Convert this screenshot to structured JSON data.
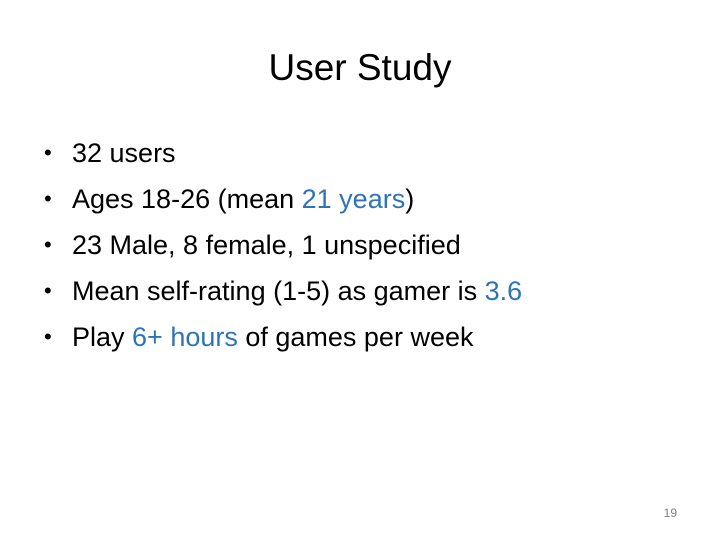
{
  "slide": {
    "title": "User Study",
    "bullet_char": "•",
    "bullets": [
      {
        "segments": [
          {
            "text": "32 users"
          }
        ]
      },
      {
        "segments": [
          {
            "text": "Ages 18-26 (mean "
          },
          {
            "text": "21 years",
            "highlight": true
          },
          {
            "text": ")"
          }
        ]
      },
      {
        "segments": [
          {
            "text": "23 Male, 8 female, 1 unspecified"
          }
        ]
      },
      {
        "segments": [
          {
            "text": "Mean self-rating (1-5) as gamer is "
          },
          {
            "text": "3.6",
            "highlight": true
          }
        ]
      },
      {
        "segments": [
          {
            "text": "Play "
          },
          {
            "text": "6+ hours",
            "highlight": true
          },
          {
            "text": " of games per week"
          }
        ]
      }
    ],
    "page_number": "19",
    "highlight_color": "#2e74b5"
  }
}
